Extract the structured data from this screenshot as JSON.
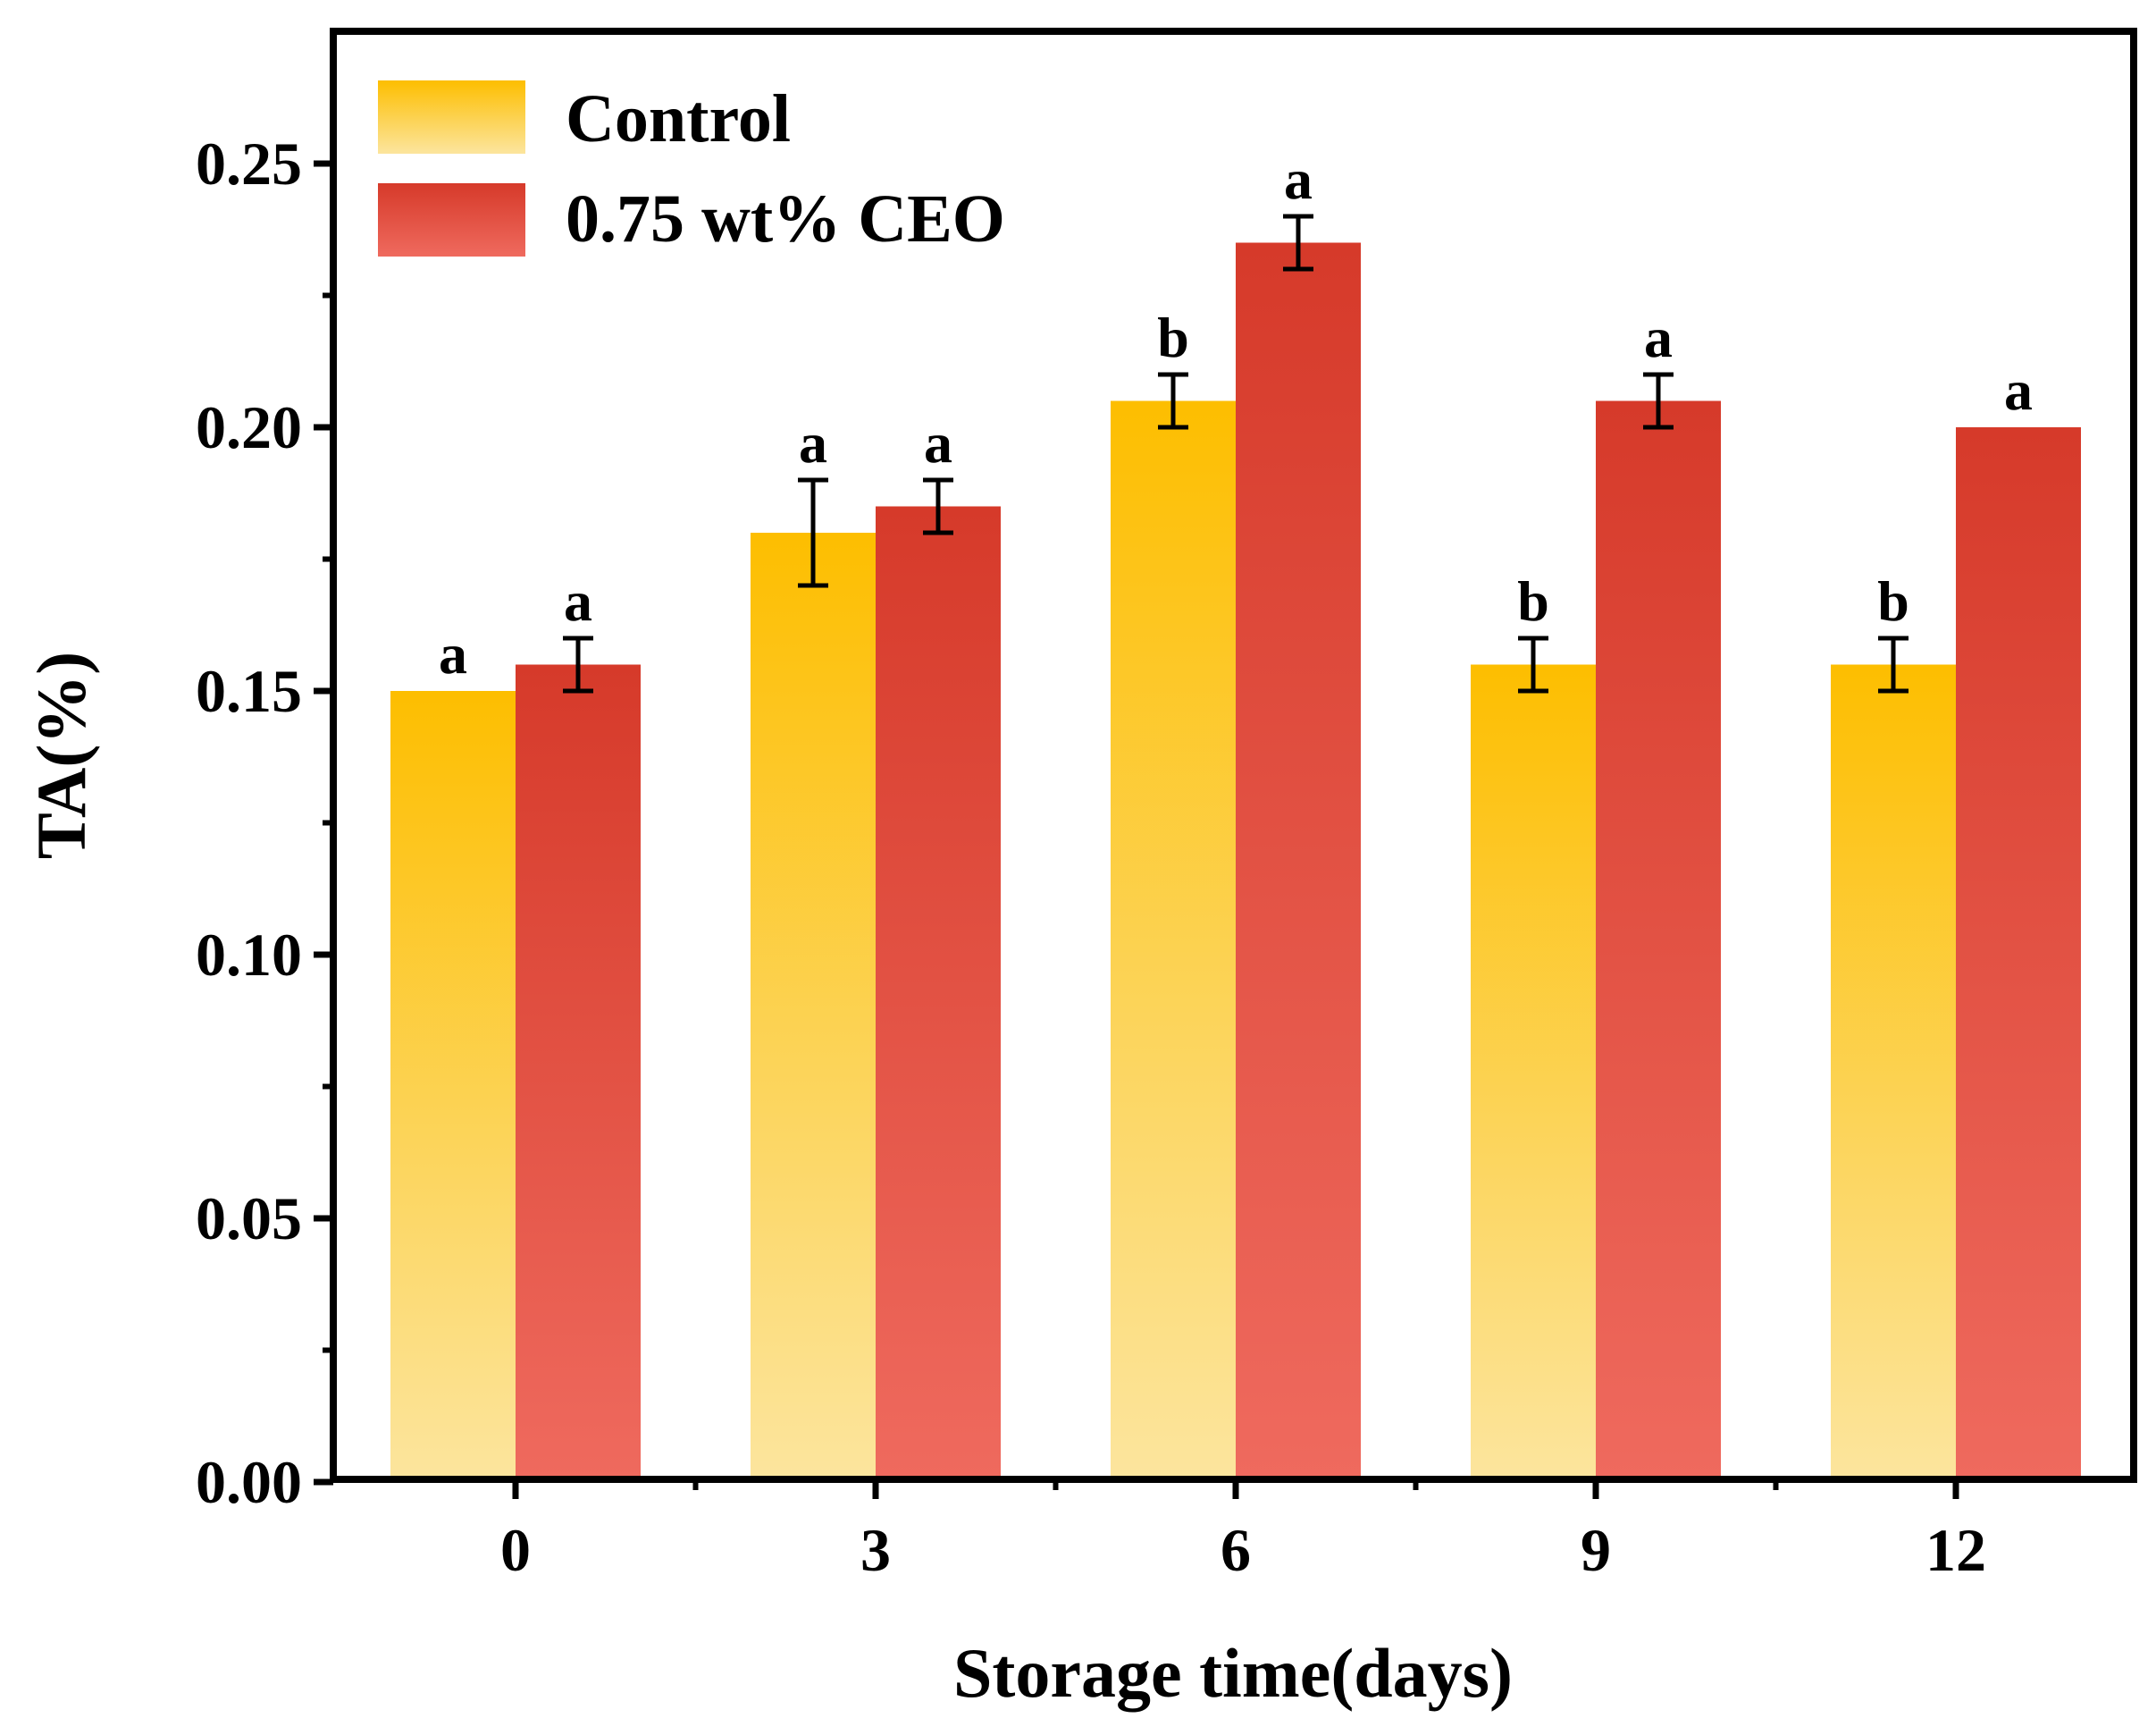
{
  "chart_data": {
    "type": "bar",
    "title": "",
    "xlabel": "Storage time(days)",
    "ylabel": "TA(%)",
    "categories": [
      "0",
      "3",
      "6",
      "9",
      "12"
    ],
    "ylim": [
      0,
      0.275
    ],
    "yticks": [
      "0.00",
      "0.05",
      "0.10",
      "0.15",
      "0.20",
      "0.25"
    ],
    "ytick_values": [
      0,
      0.05,
      0.1,
      0.15,
      0.2,
      0.25
    ],
    "legend_position": "top-left",
    "series": [
      {
        "name": "Control",
        "color_top": "#FDBE00",
        "color_bottom": "#FCE59E",
        "values": [
          0.15,
          0.18,
          0.205,
          0.155,
          0.155
        ],
        "errors": [
          0,
          0.01,
          0.005,
          0.005,
          0.005
        ],
        "labels": [
          "a",
          "a",
          "b",
          "b",
          "b"
        ]
      },
      {
        "name": "0.75 wt% CEO",
        "color_top": "#D63A2A",
        "color_bottom": "#EF6A5E",
        "values": [
          0.155,
          0.185,
          0.235,
          0.205,
          0.2
        ],
        "errors": [
          0.005,
          0.005,
          0.005,
          0.005,
          0
        ],
        "labels": [
          "a",
          "a",
          "a",
          "a",
          "a"
        ]
      }
    ]
  }
}
